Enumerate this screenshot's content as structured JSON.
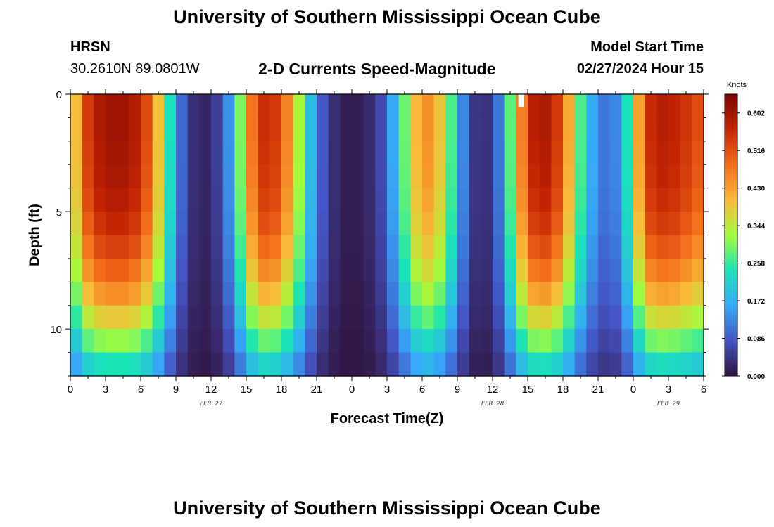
{
  "page": {
    "title": "University of Southern Mississippi Ocean Cube",
    "footer_title": "University of Southern Mississippi Ocean Cube",
    "station": "HRSN",
    "coords": "30.2610N  89.0801W",
    "subtitle": "2-D Currents Speed-Magnitude",
    "model_label": "Model Start Time",
    "model_time": "02/27/2024 Hour 15"
  },
  "colors": {
    "colormap": [
      "#30123b",
      "#4454c4",
      "#36a9f9",
      "#1ae4b6",
      "#a4fc3c",
      "#f9ba38",
      "#f36c1b",
      "#c42503",
      "#7a0403"
    ],
    "border": "#000000"
  },
  "chart_data": {
    "type": "heatmap",
    "xlabel": "Forecast Time(Z)",
    "ylabel": "Depth (ft)",
    "colorbar_label": "Knots",
    "x_tick_labels": [
      "0",
      "3",
      "6",
      "9",
      "12",
      "15",
      "18",
      "21",
      "0",
      "3",
      "6",
      "9",
      "12",
      "15",
      "18",
      "21",
      "0",
      "3",
      "6"
    ],
    "date_labels": [
      {
        "label": "FEB 27",
        "x_hour": 12
      },
      {
        "label": "FEB 28",
        "x_hour": 36
      },
      {
        "label": "FEB 29",
        "x_hour": 51
      }
    ],
    "xlim": [
      0,
      54
    ],
    "ylim": [
      0,
      12
    ],
    "y_ticks": [
      0,
      5,
      10
    ],
    "y_tick_labels": [
      "0",
      "5",
      "10"
    ],
    "clim": [
      0,
      0.645
    ],
    "colorbar_ticks": [
      "0.602",
      "0.516",
      "0.430",
      "0.344",
      "0.258",
      "0.172",
      "0.086",
      "0.000"
    ],
    "colorbar_tick_values": [
      0.602,
      0.516,
      0.43,
      0.344,
      0.258,
      0.172,
      0.086,
      0.0
    ],
    "missing_cell": {
      "hour": 38,
      "depth": 0
    },
    "surface_profile": [
      0.3,
      0.5,
      0.58,
      0.6,
      0.61,
      0.6,
      0.57,
      0.47,
      0.32,
      0.15,
      0.05,
      0.02,
      0.03,
      0.08,
      0.2,
      0.4,
      0.55,
      0.56,
      0.52,
      0.4,
      0.26,
      0.12,
      0.05,
      0.02,
      0.01,
      0.02,
      0.04,
      0.1,
      0.22,
      0.36,
      0.45,
      0.44,
      0.34,
      0.2,
      0.06,
      0.03,
      0.05,
      0.18,
      0.38,
      0.55,
      0.6,
      0.58,
      0.5,
      0.34,
      0.2,
      0.13,
      0.1,
      0.16,
      0.32,
      0.54,
      0.58,
      0.58,
      0.56,
      0.53,
      0.5
    ],
    "depth_factor": [
      1.0,
      1.0,
      0.99,
      0.98,
      0.96,
      0.93,
      0.88,
      0.82,
      0.74,
      0.64,
      0.52,
      0.4
    ]
  }
}
